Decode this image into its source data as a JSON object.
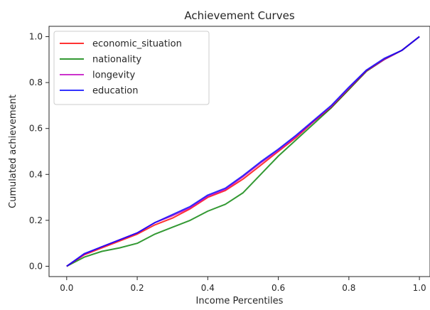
{
  "chart_data": {
    "type": "line",
    "title": "Achievement Curves",
    "xlabel": "Income Percentiles",
    "ylabel": "Cumulated achievement",
    "xlim": [
      -0.05,
      1.03
    ],
    "ylim": [
      -0.045,
      1.045
    ],
    "xticks": [
      0.0,
      0.2,
      0.4,
      0.6,
      0.8,
      1.0
    ],
    "xtick_labels": [
      "0.0",
      "0.2",
      "0.4",
      "0.6",
      "0.8",
      "1.0"
    ],
    "yticks": [
      0.0,
      0.2,
      0.4,
      0.6,
      0.8,
      1.0
    ],
    "ytick_labels": [
      "0.0",
      "0.2",
      "0.4",
      "0.6",
      "0.8",
      "1.0"
    ],
    "grid": false,
    "legend_position": "top-left",
    "series": [
      {
        "name": "economic_situation",
        "color": "#ff0000",
        "x": [
          0.0,
          0.05,
          0.1,
          0.15,
          0.2,
          0.25,
          0.3,
          0.35,
          0.4,
          0.45,
          0.5,
          0.55,
          0.6,
          0.65,
          0.7,
          0.75,
          0.8,
          0.85,
          0.9,
          0.95,
          1.0
        ],
        "y": [
          0.0,
          0.05,
          0.08,
          0.11,
          0.14,
          0.18,
          0.21,
          0.25,
          0.3,
          0.33,
          0.38,
          0.44,
          0.5,
          0.56,
          0.63,
          0.69,
          0.77,
          0.85,
          0.9,
          0.94,
          1.0
        ]
      },
      {
        "name": "nationality",
        "color": "#008000",
        "x": [
          0.0,
          0.05,
          0.1,
          0.15,
          0.2,
          0.25,
          0.3,
          0.35,
          0.4,
          0.45,
          0.5,
          0.55,
          0.6,
          0.65,
          0.7,
          0.75,
          0.8,
          0.85,
          0.9,
          0.95,
          1.0
        ],
        "y": [
          0.0,
          0.04,
          0.065,
          0.08,
          0.1,
          0.14,
          0.17,
          0.2,
          0.24,
          0.27,
          0.32,
          0.4,
          0.48,
          0.55,
          0.62,
          0.69,
          0.77,
          0.85,
          0.9,
          0.94,
          1.0
        ]
      },
      {
        "name": "longevity",
        "color": "#bf00bf",
        "x": [
          0.0,
          0.05,
          0.1,
          0.15,
          0.2,
          0.25,
          0.3,
          0.35,
          0.4,
          0.45,
          0.5,
          0.55,
          0.6,
          0.65,
          0.7,
          0.75,
          0.8,
          0.85,
          0.9,
          0.95,
          1.0
        ],
        "y": [
          0.0,
          0.052,
          0.085,
          0.115,
          0.145,
          0.19,
          0.22,
          0.255,
          0.305,
          0.335,
          0.39,
          0.45,
          0.505,
          0.565,
          0.63,
          0.695,
          0.775,
          0.852,
          0.9,
          0.94,
          1.0
        ]
      },
      {
        "name": "education",
        "color": "#0000ff",
        "x": [
          0.0,
          0.05,
          0.1,
          0.15,
          0.2,
          0.25,
          0.3,
          0.35,
          0.4,
          0.45,
          0.5,
          0.55,
          0.6,
          0.65,
          0.7,
          0.75,
          0.8,
          0.85,
          0.9,
          0.95,
          1.0
        ],
        "y": [
          0.0,
          0.055,
          0.085,
          0.115,
          0.145,
          0.19,
          0.225,
          0.26,
          0.31,
          0.34,
          0.395,
          0.455,
          0.51,
          0.57,
          0.635,
          0.7,
          0.78,
          0.855,
          0.905,
          0.94,
          1.0
        ]
      }
    ]
  }
}
